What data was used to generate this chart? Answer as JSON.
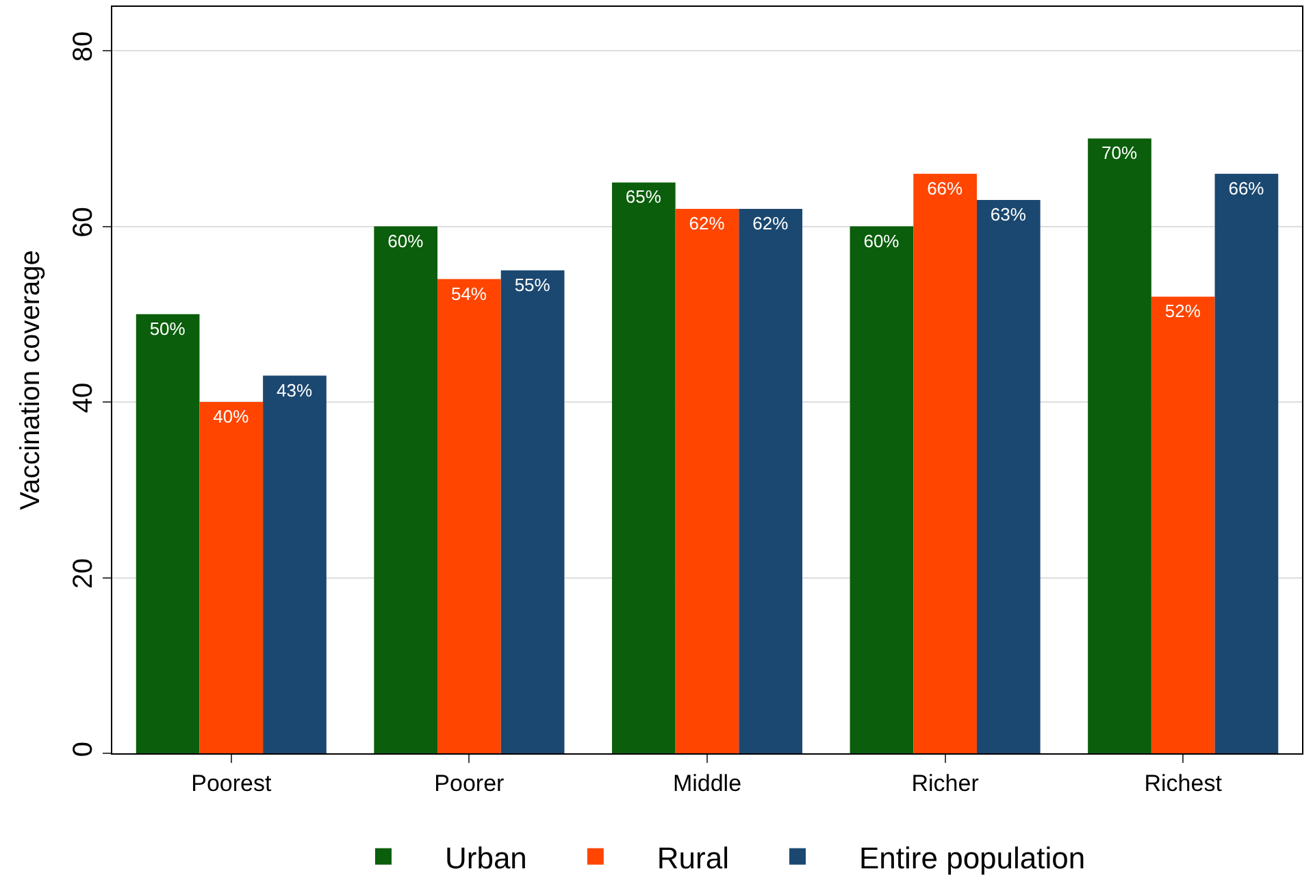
{
  "chart_data": {
    "type": "bar",
    "ylabel": "Vaccination coverage",
    "categories": [
      "Poorest",
      "Poorer",
      "Middle",
      "Richer",
      "Richest"
    ],
    "series": [
      {
        "name": "Urban",
        "color": "#0b5e0b",
        "values": [
          50,
          60,
          65,
          60,
          70
        ],
        "value_labels": [
          "50%",
          "60%",
          "65%",
          "60%",
          "70%"
        ]
      },
      {
        "name": "Rural",
        "color": "#ff4500",
        "values": [
          40,
          54,
          62,
          66,
          52
        ],
        "value_labels": [
          "40%",
          "54%",
          "62%",
          "66%",
          "52%"
        ]
      },
      {
        "name": "Entire population",
        "color": "#1b4870",
        "values": [
          43,
          55,
          62,
          63,
          66
        ],
        "value_labels": [
          "43%",
          "55%",
          "62%",
          "63%",
          "66%"
        ]
      }
    ],
    "ylim": [
      0,
      85
    ],
    "yticks": [
      0,
      20,
      40,
      60,
      80
    ],
    "grid": "y",
    "legend": "bottom"
  }
}
